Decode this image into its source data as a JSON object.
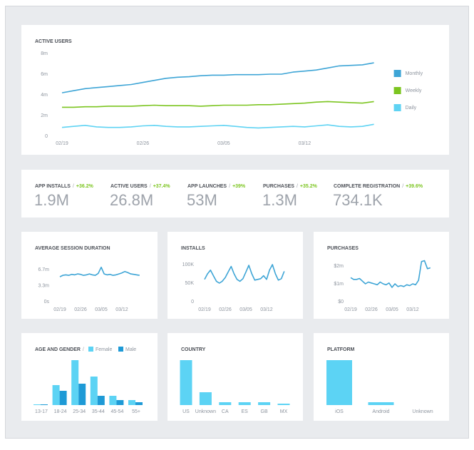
{
  "chart_data": [
    {
      "type": "line",
      "title": "ACTIVE USERS",
      "categories": [
        "02/19",
        null,
        null,
        null,
        null,
        null,
        null,
        "02/26",
        null,
        null,
        null,
        null,
        null,
        null,
        "03/05",
        null,
        null,
        null,
        null,
        null,
        null,
        "03/12",
        null,
        null,
        null,
        null,
        null,
        null
      ],
      "series": [
        {
          "name": "Monthly",
          "color": "#3ea5d6",
          "values": [
            4.2,
            4.4,
            4.6,
            4.7,
            4.8,
            4.9,
            5.0,
            5.2,
            5.4,
            5.6,
            5.7,
            5.75,
            5.85,
            5.9,
            5.9,
            5.95,
            5.95,
            5.95,
            6.0,
            6.0,
            6.2,
            6.3,
            6.4,
            6.6,
            6.8,
            6.85,
            6.9,
            7.1
          ]
        },
        {
          "name": "Weekly",
          "color": "#7cc520",
          "values": [
            2.8,
            2.8,
            2.85,
            2.85,
            2.9,
            2.9,
            2.9,
            2.95,
            3.0,
            2.95,
            2.95,
            2.95,
            2.9,
            2.95,
            3.0,
            3.0,
            3.0,
            3.05,
            3.05,
            3.1,
            3.15,
            3.2,
            3.3,
            3.35,
            3.3,
            3.25,
            3.2,
            3.35
          ]
        },
        {
          "name": "Daily",
          "color": "#5fd3f3",
          "values": [
            0.85,
            0.95,
            1.05,
            0.9,
            0.85,
            0.85,
            0.9,
            1.0,
            1.05,
            0.95,
            0.9,
            0.9,
            0.95,
            1.0,
            1.05,
            0.95,
            0.85,
            0.8,
            0.85,
            0.9,
            0.95,
            0.9,
            1.0,
            1.1,
            0.95,
            0.9,
            0.95,
            1.15
          ]
        }
      ],
      "ylim": [
        0,
        8
      ],
      "yticks": [
        {
          "value": 8,
          "label": "8m"
        },
        {
          "value": 6,
          "label": "6m"
        },
        {
          "value": 4,
          "label": "4m"
        },
        {
          "value": 2,
          "label": "2m"
        },
        0
      ],
      "legend": "right"
    },
    {
      "type": "line",
      "title": "AVERAGE SESSION DURATION",
      "categories": [
        "02/19",
        null,
        null,
        null,
        null,
        null,
        null,
        "02/26",
        null,
        null,
        null,
        null,
        null,
        null,
        "03/05",
        null,
        null,
        null,
        null,
        null,
        null,
        "03/12",
        null,
        null,
        null,
        null,
        null,
        null
      ],
      "values": [
        5.2,
        5.5,
        5.6,
        5.5,
        5.7,
        5.6,
        5.8,
        5.7,
        5.5,
        5.6,
        5.8,
        5.6,
        5.5,
        5.9,
        7.2,
        5.8,
        5.6,
        5.7,
        5.5,
        5.6,
        5.8,
        6.0,
        6.3,
        6.1,
        5.8,
        5.7,
        5.6,
        5.5
      ],
      "color": "#3ea5d6",
      "ylim": [
        0,
        8
      ],
      "yticks": [
        {
          "value": 6.7,
          "label": "6.7m"
        },
        {
          "value": 3.3,
          "label": "3.3m"
        },
        {
          "value": 0,
          "label": "0s"
        }
      ]
    },
    {
      "type": "line",
      "title": "INSTALLS",
      "categories": [
        "02/19",
        null,
        null,
        null,
        null,
        null,
        null,
        "02/26",
        null,
        null,
        null,
        null,
        null,
        null,
        "03/05",
        null,
        null,
        null,
        null,
        null,
        null,
        "03/12",
        null,
        null,
        null,
        null,
        null,
        null
      ],
      "values": [
        60,
        75,
        85,
        70,
        55,
        50,
        55,
        65,
        80,
        95,
        75,
        60,
        55,
        62,
        80,
        98,
        75,
        58,
        60,
        62,
        70,
        60,
        85,
        100,
        75,
        58,
        62,
        82
      ],
      "color": "#3ea5d6",
      "ylim": [
        0,
        120
      ],
      "yticks": [
        {
          "value": 100,
          "label": "100K"
        },
        {
          "value": 50,
          "label": "50K"
        },
        0
      ]
    },
    {
      "type": "line",
      "title": "PURCHASES",
      "categories": [
        "02/19",
        null,
        null,
        null,
        null,
        null,
        null,
        "02/26",
        null,
        null,
        null,
        null,
        null,
        null,
        "03/05",
        null,
        null,
        null,
        null,
        null,
        null,
        "03/12",
        null,
        null,
        null,
        null,
        null,
        null
      ],
      "values": [
        1.35,
        1.25,
        1.25,
        1.3,
        1.15,
        1.0,
        1.1,
        1.05,
        1.0,
        0.95,
        1.1,
        1.0,
        0.95,
        1.05,
        0.8,
        1.0,
        0.85,
        0.9,
        0.85,
        0.95,
        0.9,
        1.0,
        0.95,
        1.2,
        2.25,
        2.3,
        1.85,
        1.9
      ],
      "color": "#3ea5d6",
      "ylim": [
        0,
        2.5
      ],
      "yticks": [
        {
          "value": 2,
          "label": "$2m"
        },
        {
          "value": 1,
          "label": "$1m"
        },
        {
          "value": 0,
          "label": "$0"
        }
      ]
    },
    {
      "type": "bar",
      "title": "AGE AND GENDER",
      "categories": [
        "13-17",
        "18-24",
        "25-34",
        "35-44",
        "45-54",
        "55+"
      ],
      "series": [
        {
          "name": "Female",
          "color": "#5cd3f4",
          "values": [
            1,
            28,
            63,
            40,
            13,
            7
          ]
        },
        {
          "name": "Male",
          "color": "#1e9ad6",
          "values": [
            1,
            20,
            30,
            13,
            7,
            4
          ]
        }
      ]
    },
    {
      "type": "bar",
      "title": "COUNTRY",
      "categories": [
        "US",
        "Unknown",
        "CA",
        "ES",
        "GB",
        "MX"
      ],
      "values": [
        63,
        18,
        4,
        4,
        4,
        2
      ],
      "color": "#5cd3f4"
    },
    {
      "type": "bar",
      "title": "PLATFORM",
      "categories": [
        "iOS",
        "Android",
        "Unknown"
      ],
      "values": [
        63,
        4,
        0
      ],
      "color": "#5cd3f4"
    }
  ],
  "separator": "/",
  "metrics": [
    {
      "label": "APP INSTALLS",
      "change": "+36.2%",
      "value": "1.9M"
    },
    {
      "label": "ACTIVE USERS",
      "change": "+37.4%",
      "value": "26.8M"
    },
    {
      "label": "APP LAUNCHES",
      "change": "+39%",
      "value": "53M"
    },
    {
      "label": "PURCHASES",
      "change": "+35.2%",
      "value": "1.3M"
    },
    {
      "label": "COMPLETE REGISTRATION",
      "change": "+39.6%",
      "value": "734.1K"
    }
  ]
}
